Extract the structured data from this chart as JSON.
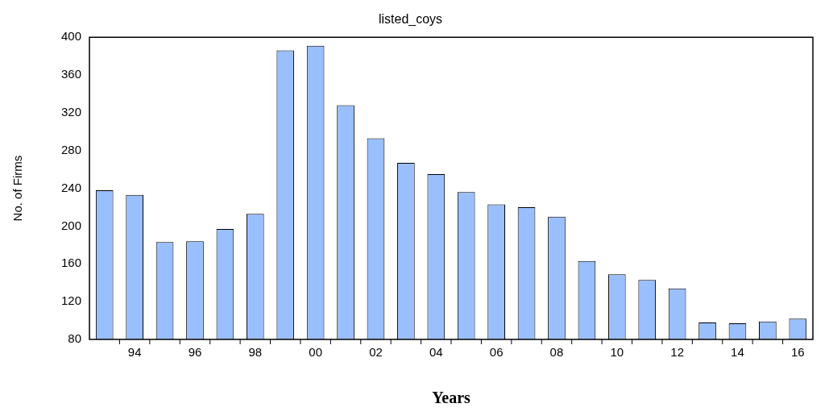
{
  "chart_data": {
    "type": "bar",
    "title": "listed_coys",
    "xlabel": "Years",
    "ylabel": "No. of Firms",
    "categories": [
      null,
      "94",
      null,
      "96",
      null,
      "98",
      null,
      "00",
      null,
      "02",
      null,
      "04",
      null,
      "06",
      null,
      "08",
      null,
      "10",
      null,
      "12",
      null,
      "14",
      null,
      "16"
    ],
    "series": [
      {
        "color": "#99bfff",
        "values": [
          238,
          233,
          183,
          184,
          197,
          213,
          386,
          391,
          328,
          293,
          267,
          255,
          236,
          223,
          220,
          210,
          163,
          149,
          143,
          134,
          98,
          97,
          99,
          102
        ]
      }
    ],
    "ylim": [
      80,
      400
    ],
    "yticks": [
      80,
      120,
      160,
      200,
      240,
      280,
      320,
      360,
      400
    ],
    "grid": false,
    "legend": false
  }
}
